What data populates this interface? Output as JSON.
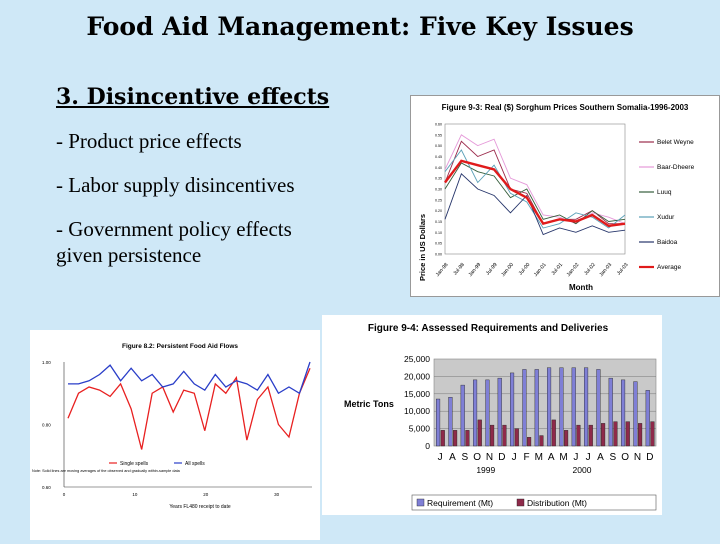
{
  "slide": {
    "title": "Food Aid Management: Five Key Issues",
    "heading": "3. Disincentive effects",
    "bullets": [
      "- Product price effects",
      "- Labor supply disincentives",
      "- Government policy effects",
      "given persistence"
    ]
  },
  "chart_data": [
    {
      "type": "line",
      "title": "Figure 9-3: Real ($) Sorghum Prices Southern Somalia-1996-2003",
      "ylabel": "Price in US Dollars",
      "xlabel": "Month",
      "ylim": [
        0,
        0.6
      ],
      "yticks": [
        "0.60",
        "0.55",
        "0.50",
        "0.45",
        "0.40",
        "0.35",
        "0.30",
        "0.25",
        "0.20",
        "0.15",
        "0.10",
        "0.05",
        "0.00"
      ],
      "categories": [
        "Jan-98",
        "Jul-98",
        "Jan-99",
        "Jul-99",
        "Jan-00",
        "Jul-00",
        "Jan-01",
        "Jul-01",
        "Jan-02",
        "Jul-02",
        "Jan-03",
        "Jul-03"
      ],
      "series": [
        {
          "name": "Belet Weyne",
          "color": "#9b2a4b",
          "values": [
            0.33,
            0.52,
            0.45,
            0.48,
            0.3,
            0.28,
            0.14,
            0.16,
            0.16,
            0.2,
            0.14,
            0.14
          ]
        },
        {
          "name": "Baar-Dheere",
          "color": "#e59ad9",
          "values": [
            0.39,
            0.55,
            0.5,
            0.53,
            0.35,
            0.32,
            0.18,
            0.17,
            0.14,
            0.19,
            0.17,
            0.14
          ]
        },
        {
          "name": "Luuq",
          "color": "#355e3b",
          "values": [
            0.3,
            0.42,
            0.38,
            0.36,
            0.26,
            0.3,
            0.16,
            0.18,
            0.14,
            0.2,
            0.15,
            0.16
          ]
        },
        {
          "name": "Xudur",
          "color": "#5aa0b8",
          "values": [
            0.38,
            0.48,
            0.33,
            0.41,
            0.28,
            0.24,
            0.12,
            0.14,
            0.19,
            0.17,
            0.12,
            0.18
          ]
        },
        {
          "name": "Baidoa",
          "color": "#27366b",
          "values": [
            0.16,
            0.37,
            0.3,
            0.27,
            0.19,
            0.27,
            0.09,
            0.12,
            0.1,
            0.13,
            0.1,
            0.11
          ]
        },
        {
          "name": "Average",
          "color": "#e01b1b",
          "values": [
            0.33,
            0.43,
            0.41,
            0.39,
            0.3,
            0.26,
            0.14,
            0.16,
            0.15,
            0.18,
            0.13,
            0.14
          ]
        }
      ]
    },
    {
      "type": "line",
      "title": "Figure 8.2: Persistent Food Aid Flows",
      "xlabel": "Years FL480 receipt to date",
      "xticks": [
        "0",
        "10",
        "20",
        "30"
      ],
      "yticks": [
        "1.00",
        "0.80",
        "0.60"
      ],
      "ylim": [
        0.6,
        1.0
      ],
      "note": "Note: Solid lines are moving averages of the observed and gradually within-sample data",
      "series": [
        {
          "name": "Single spells",
          "color": "#e82020",
          "values": [
            0.82,
            0.9,
            0.92,
            0.91,
            0.89,
            0.93,
            0.85,
            0.72,
            0.9,
            0.92,
            0.84,
            0.91,
            0.9,
            0.78,
            0.93,
            0.9,
            0.95,
            0.75,
            0.88,
            0.92,
            0.8,
            0.76,
            0.9,
            0.98
          ]
        },
        {
          "name": "All spells",
          "color": "#2a3ec8",
          "values": [
            0.93,
            0.93,
            0.94,
            0.96,
            0.99,
            0.94,
            0.98,
            0.94,
            0.96,
            0.92,
            0.93,
            0.97,
            0.93,
            0.91,
            0.96,
            0.92,
            0.94,
            0.93,
            0.91,
            0.96,
            0.9,
            0.92,
            0.9,
            1.0
          ]
        }
      ]
    },
    {
      "type": "bar",
      "title": "Figure 9-4:  Assessed Requirements and Deliveries",
      "ylabel": "Metric Tons",
      "ylim": [
        0,
        25000
      ],
      "yticks": [
        "25,000",
        "20,000",
        "15,000",
        "10,000",
        "5,000",
        "0"
      ],
      "categories": [
        "J",
        "A",
        "S",
        "O",
        "N",
        "D",
        "J",
        "F",
        "M",
        "A",
        "M",
        "J",
        "J",
        "A",
        "S",
        "O",
        "N",
        "D"
      ],
      "years": [
        "1999",
        "2000"
      ],
      "series": [
        {
          "name": "Requirement (Mt)",
          "color": "#7f7fd6",
          "values": [
            13500,
            14000,
            17500,
            19000,
            19000,
            19500,
            21000,
            22000,
            22000,
            22500,
            22500,
            22500,
            22500,
            22000,
            19500,
            19000,
            18500,
            16000
          ]
        },
        {
          "name": "Distribution (Mt)",
          "color": "#8e2a4a",
          "values": [
            4500,
            4500,
            4500,
            7500,
            6000,
            6000,
            5000,
            2500,
            3000,
            7500,
            4500,
            6000,
            6000,
            6500,
            7000,
            7000,
            6500,
            7000
          ]
        }
      ]
    }
  ]
}
